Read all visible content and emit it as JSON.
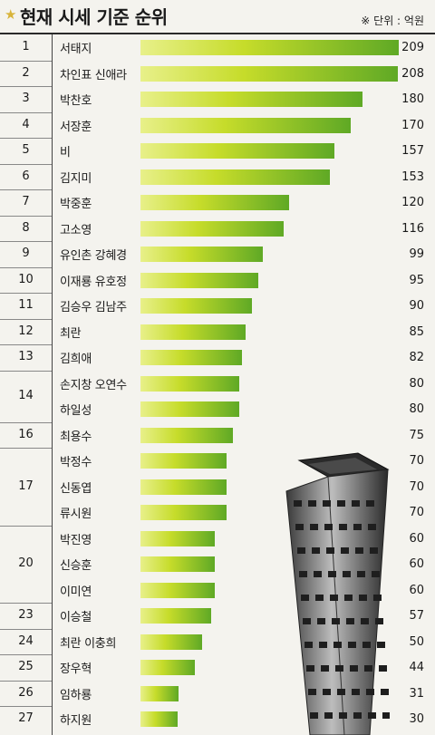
{
  "header": {
    "title": "현재 시세 기준 순위",
    "unit": "※ 단위 : 억원"
  },
  "colors": {
    "bar_start": "#e8f08a",
    "bar_mid": "#c6dc2a",
    "bar_end": "#5fa925"
  },
  "icons": {
    "title_marker": "star-icon",
    "illustration": "tower-building-illustration"
  },
  "chart_data": {
    "type": "bar",
    "orientation": "horizontal",
    "unit": "억원",
    "ranks": [
      "1",
      "2",
      "3",
      "4",
      "5",
      "6",
      "7",
      "8",
      "9",
      "10",
      "11",
      "12",
      "13",
      "14",
      "16",
      "17",
      "20",
      "23",
      "24",
      "25",
      "26",
      "27"
    ],
    "categories": [
      "서태지",
      "차인표 신애라",
      "박찬호",
      "서장훈",
      "비",
      "김지미",
      "박중훈",
      "고소영",
      "유인촌 강혜경",
      "이재룡 유호정",
      "김승우 김남주",
      "최란",
      "김희애",
      "손지창 오연수",
      "하일성",
      "최용수",
      "박정수",
      "신동엽",
      "류시원",
      "박진영",
      "신승훈",
      "이미연",
      "이승철",
      "최란 이충희",
      "장우혁",
      "임하룡",
      "하지원"
    ],
    "values": [
      209,
      208,
      180,
      170,
      157,
      153,
      120,
      116,
      99,
      95,
      90,
      85,
      82,
      80,
      80,
      75,
      70,
      70,
      70,
      60,
      60,
      60,
      57,
      50,
      44,
      31,
      30
    ]
  }
}
